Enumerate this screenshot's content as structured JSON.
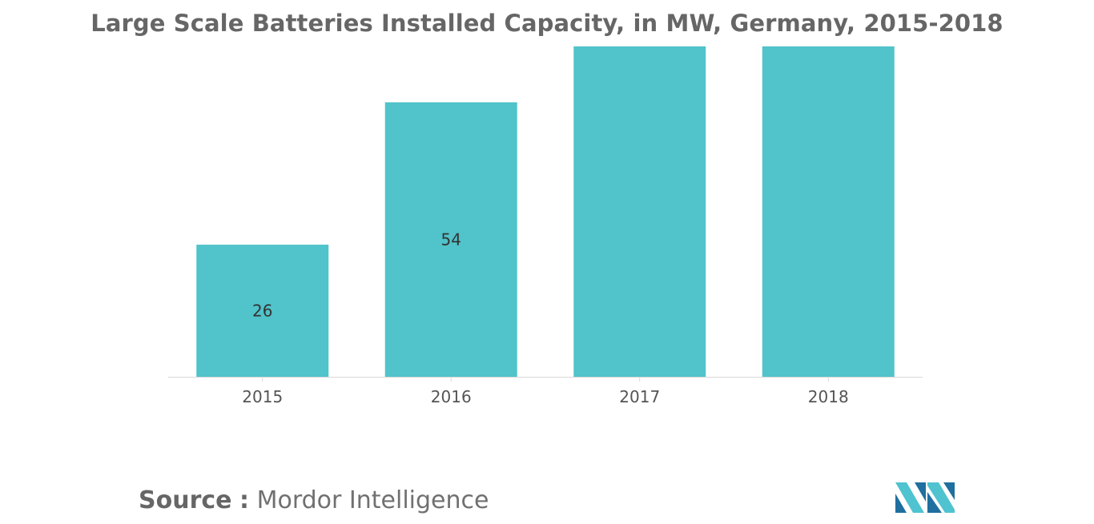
{
  "chart_data": {
    "type": "bar",
    "title": "Large Scale Batteries Installed Capacity, in MW, Germany, 2015-2018",
    "categories": [
      "2015",
      "2016",
      "2017",
      "2018"
    ],
    "values": [
      26,
      54,
      65,
      65
    ],
    "data_labels": [
      "26",
      "54",
      "",
      ""
    ],
    "xlabel": "",
    "ylabel": "",
    "ylim": [
      0,
      65
    ],
    "grid": false,
    "legend": "none",
    "bar_color": "#51C3CA",
    "axis_color": "#D9D9D9"
  },
  "source": {
    "label": "Source",
    "separator": ":",
    "name": "Mordor Intelligence"
  },
  "colors": {
    "title": "#666666",
    "tick_text": "#555555",
    "label_text": "#333333",
    "logo_dark": "#1F6F9F",
    "logo_light": "#4FC3D0"
  }
}
